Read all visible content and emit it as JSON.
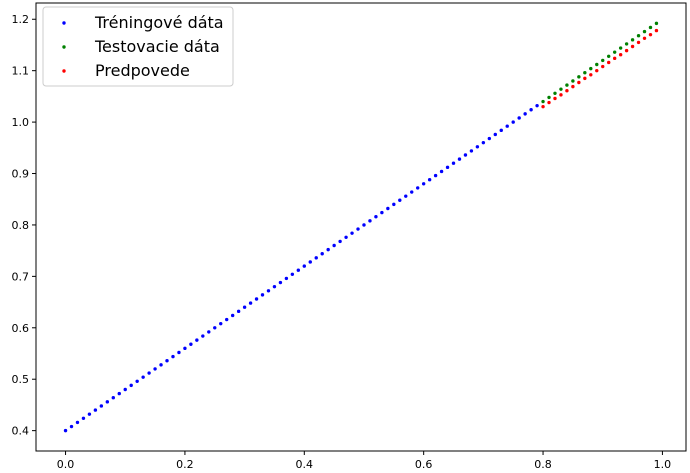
{
  "chart_data": {
    "type": "scatter",
    "xlim": [
      -0.0495,
      1.0395
    ],
    "ylim": [
      0.3604,
      1.2316
    ],
    "xticks": [
      {
        "value": 0,
        "label": "0.0"
      },
      0.2,
      0.4,
      0.6,
      0.8,
      {
        "value": 1,
        "label": "1.0"
      }
    ],
    "yticks": [
      0.4,
      0.5,
      0.6,
      0.7,
      0.8,
      0.9,
      {
        "value": 1,
        "label": "1.0"
      },
      1.1,
      1.2
    ],
    "legend": "upper left",
    "series": [
      {
        "name": "Tréningové dáta",
        "color": "#0000ff",
        "x": [
          0,
          0.01,
          0.02,
          0.03,
          0.04,
          0.05,
          0.06,
          0.07,
          0.08,
          0.09,
          0.1,
          0.11,
          0.12,
          0.13,
          0.14,
          0.15,
          0.16,
          0.17,
          0.18,
          0.19,
          0.2,
          0.21,
          0.22,
          0.23,
          0.24,
          0.25,
          0.26,
          0.27,
          0.28,
          0.29,
          0.3,
          0.31,
          0.32,
          0.33,
          0.34,
          0.35,
          0.36,
          0.37,
          0.38,
          0.39,
          0.4,
          0.41,
          0.42,
          0.43,
          0.44,
          0.45,
          0.46,
          0.47,
          0.48,
          0.49,
          0.5,
          0.51,
          0.52,
          0.53,
          0.54,
          0.55,
          0.56,
          0.57,
          0.58,
          0.59,
          0.6,
          0.61,
          0.62,
          0.63,
          0.64,
          0.65,
          0.66,
          0.67,
          0.68,
          0.69,
          0.7,
          0.71,
          0.72,
          0.73,
          0.74,
          0.75,
          0.76,
          0.77,
          0.78,
          0.79
        ],
        "values": [
          0.4,
          0.408,
          0.416,
          0.424,
          0.432,
          0.44,
          0.448,
          0.456,
          0.464,
          0.472,
          0.48,
          0.488,
          0.496,
          0.504,
          0.512,
          0.52,
          0.528,
          0.536,
          0.544,
          0.552,
          0.56,
          0.568,
          0.576,
          0.584,
          0.592,
          0.6,
          0.608,
          0.616,
          0.624,
          0.632,
          0.64,
          0.648,
          0.656,
          0.664,
          0.672,
          0.68,
          0.688,
          0.696,
          0.704,
          0.712,
          0.72,
          0.728,
          0.736,
          0.744,
          0.752,
          0.76,
          0.768,
          0.776,
          0.784,
          0.792,
          0.8,
          0.808,
          0.816,
          0.824,
          0.832,
          0.84,
          0.848,
          0.856,
          0.864,
          0.872,
          0.88,
          0.888,
          0.896,
          0.904,
          0.912,
          0.92,
          0.928,
          0.936,
          0.944,
          0.952,
          0.96,
          0.968,
          0.976,
          0.984,
          0.992,
          1.0,
          1.008,
          1.016,
          1.024,
          1.032
        ]
      },
      {
        "name": "Testovacie dáta",
        "color": "#008000",
        "x": [
          0.8,
          0.81,
          0.82,
          0.83,
          0.84,
          0.85,
          0.86,
          0.87,
          0.88,
          0.89,
          0.9,
          0.91,
          0.92,
          0.93,
          0.94,
          0.95,
          0.96,
          0.97,
          0.98,
          0.99
        ],
        "values": [
          1.04,
          1.048,
          1.056,
          1.064,
          1.072,
          1.08,
          1.088,
          1.096,
          1.104,
          1.112,
          1.12,
          1.128,
          1.136,
          1.144,
          1.152,
          1.16,
          1.168,
          1.176,
          1.184,
          1.192
        ]
      },
      {
        "name": "Predpovede",
        "color": "#ff0000",
        "x": [
          0.8,
          0.81,
          0.82,
          0.83,
          0.84,
          0.85,
          0.86,
          0.87,
          0.88,
          0.89,
          0.9,
          0.91,
          0.92,
          0.93,
          0.94,
          0.95,
          0.96,
          0.97,
          0.98,
          0.99
        ],
        "values": [
          1.03,
          1.038,
          1.046,
          1.053,
          1.061,
          1.069,
          1.077,
          1.085,
          1.092,
          1.1,
          1.108,
          1.116,
          1.124,
          1.131,
          1.139,
          1.147,
          1.155,
          1.163,
          1.17,
          1.178
        ]
      }
    ]
  }
}
